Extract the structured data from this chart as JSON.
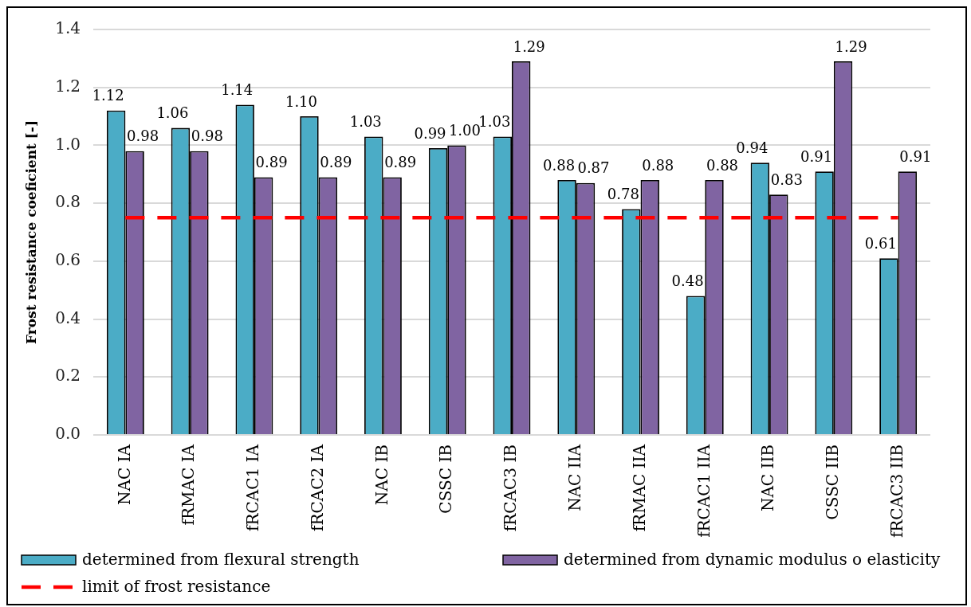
{
  "chart_data": {
    "type": "bar",
    "ylabel": "Frost resistance coeficient [-]",
    "categories": [
      "NAC IA",
      "fRMAC IA",
      "fRCAC1 IA",
      "fRCAC2 IA",
      "NAC IB",
      "CSSC IB",
      "fRCAC3 IB",
      "NAC IIA",
      "fRMAC IIA",
      "fRCAC1 IIA",
      "NAC IIB",
      "CSSC IIB",
      "fRCAC3 IIB"
    ],
    "series": [
      {
        "name": "determined from flexural strength",
        "color": "#4bacc6",
        "values": [
          1.12,
          1.06,
          1.14,
          1.1,
          1.03,
          0.99,
          1.03,
          0.88,
          0.78,
          0.48,
          0.94,
          0.91,
          0.61
        ],
        "value_labels": [
          "1.12",
          "1.06",
          "1.14",
          "1.10",
          "1.03",
          "0.99",
          "1.03",
          "0.88",
          "0.78",
          "0.48",
          "0.94",
          "0.91",
          "0.61"
        ]
      },
      {
        "name": "determined from dynamic modulus o elasticity",
        "color": "#8064a2",
        "values": [
          0.98,
          0.98,
          0.89,
          0.89,
          0.89,
          1.0,
          1.29,
          0.87,
          0.88,
          0.88,
          0.83,
          1.29,
          0.91
        ],
        "value_labels": [
          "0.98",
          "0.98",
          "0.89",
          "0.89",
          "0.89",
          "1.00",
          "1.29",
          "0.87",
          "0.88",
          "0.88",
          "0.83",
          "1.29",
          "0.91"
        ]
      },
      {
        "name": "limit of frost resistance",
        "type": "line",
        "color": "#ff0000",
        "line_style": "dashed",
        "marker": "none",
        "values": [
          0.75,
          0.75,
          0.75,
          0.75,
          0.75,
          0.75,
          0.75,
          0.75,
          0.75,
          0.75,
          0.75,
          0.75,
          0.75
        ]
      }
    ],
    "ylim": [
      0,
      1.4
    ],
    "yticks": [
      {
        "value": 0,
        "label": "0.0"
      },
      0.2,
      0.4,
      0.6,
      0.8,
      {
        "value": 1,
        "label": "1.0"
      },
      1.2,
      1.4
    ],
    "grid": "y",
    "legend": "bottom"
  }
}
